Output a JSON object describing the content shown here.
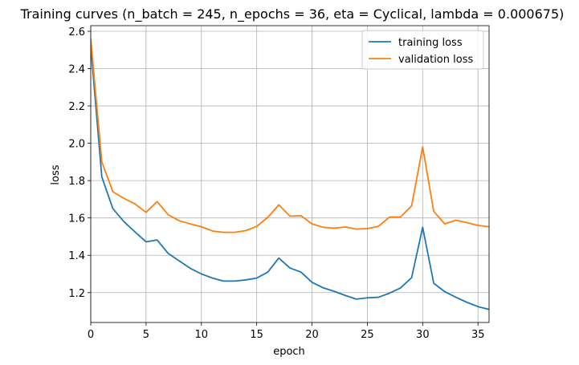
{
  "chart_data": {
    "type": "line",
    "title": "Training curves (n_batch = 245, n_epochs = 36, eta = Cyclical, lambda = 0.000675)",
    "xlabel": "epoch",
    "ylabel": "loss",
    "xlim": [
      0,
      36
    ],
    "ylim": [
      1.04,
      2.63
    ],
    "x_ticks": [
      0,
      5,
      10,
      15,
      20,
      25,
      30,
      35
    ],
    "y_ticks": [
      1.2,
      1.4,
      1.6,
      1.8,
      2.0,
      2.2,
      2.4,
      2.6
    ],
    "grid": true,
    "legend_position": "top-right",
    "x": [
      0,
      1,
      2,
      3,
      4,
      5,
      6,
      7,
      8,
      9,
      10,
      11,
      12,
      13,
      14,
      15,
      16,
      17,
      18,
      19,
      20,
      21,
      22,
      23,
      24,
      25,
      26,
      27,
      28,
      29,
      30,
      31,
      32,
      33,
      34,
      35,
      36
    ],
    "series": [
      {
        "name": "training loss",
        "color": "#1f77b4",
        "values": [
          2.52,
          1.82,
          1.65,
          1.58,
          1.525,
          1.472,
          1.482,
          1.41,
          1.37,
          1.33,
          1.3,
          1.278,
          1.262,
          1.262,
          1.268,
          1.278,
          1.31,
          1.385,
          1.332,
          1.31,
          1.255,
          1.226,
          1.207,
          1.185,
          1.165,
          1.172,
          1.175,
          1.197,
          1.225,
          1.28,
          1.55,
          1.25,
          1.205,
          1.175,
          1.148,
          1.125,
          1.11
        ]
      },
      {
        "name": "validation loss",
        "color": "#ff7f0e",
        "values": [
          2.56,
          1.9,
          1.74,
          1.705,
          1.675,
          1.63,
          1.688,
          1.617,
          1.585,
          1.568,
          1.553,
          1.53,
          1.523,
          1.523,
          1.532,
          1.555,
          1.603,
          1.67,
          1.61,
          1.612,
          1.568,
          1.55,
          1.545,
          1.552,
          1.54,
          1.543,
          1.555,
          1.605,
          1.605,
          1.665,
          1.98,
          1.635,
          1.568,
          1.588,
          1.575,
          1.56,
          1.553
        ]
      }
    ]
  }
}
